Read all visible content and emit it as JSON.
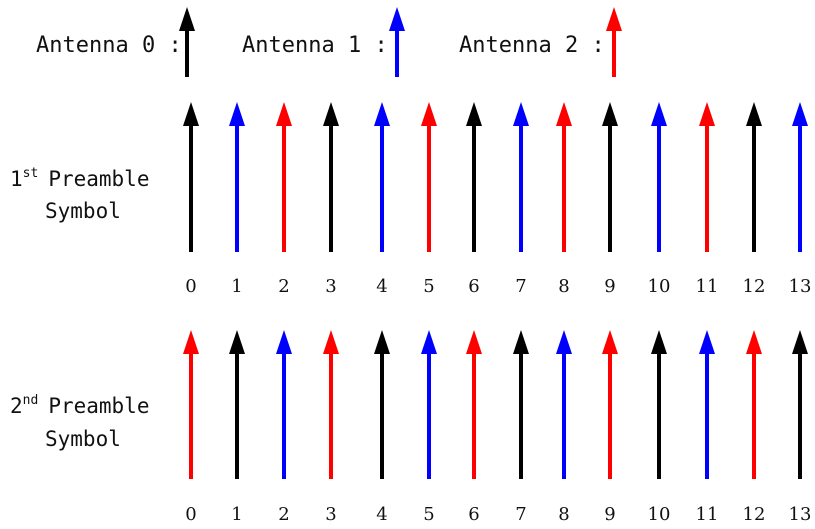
{
  "legend": [
    {
      "label": "Antenna 0 :",
      "color": "#000000"
    },
    {
      "label": "Antenna 1 :",
      "color": "#0000ff"
    },
    {
      "label": "Antenna 2 :",
      "color": "#ff0000"
    }
  ],
  "rows": [
    {
      "label_prefix": "1",
      "label_sup": "st",
      "label_word": "Preamble",
      "label_line2": "Symbol",
      "arrows": [
        0,
        1,
        2,
        0,
        1,
        2,
        0,
        1,
        2,
        0,
        1,
        2,
        0,
        1
      ]
    },
    {
      "label_prefix": "2",
      "label_sup": "nd",
      "label_word": "Preamble",
      "label_line2": "Symbol",
      "arrows": [
        2,
        0,
        1,
        2,
        0,
        1,
        2,
        0,
        1,
        2,
        0,
        1,
        2,
        0
      ]
    }
  ],
  "indices": [
    "0",
    "1",
    "2",
    "3",
    "4",
    "5",
    "6",
    "7",
    "8",
    "9",
    "10",
    "11",
    "12",
    "13"
  ]
}
